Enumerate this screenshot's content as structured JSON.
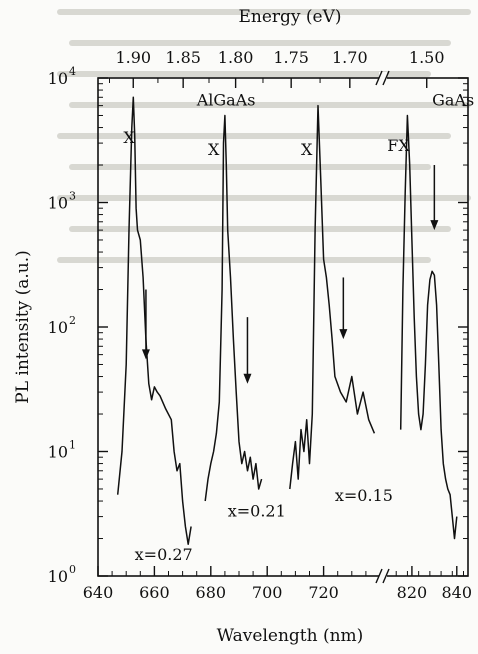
{
  "chart_data": {
    "type": "line",
    "xlabel": "Wavelength (nm)",
    "ylabel": "PL intensity (a.u.)",
    "x2label": "Energy (eV)",
    "ylog": true,
    "ylim": [
      1,
      10000
    ],
    "y_ticks": [
      {
        "value": 1,
        "base": "10",
        "exp": "0"
      },
      {
        "value": 10,
        "base": "10",
        "exp": "1"
      },
      {
        "value": 100,
        "base": "10",
        "exp": "2"
      },
      {
        "value": 1000,
        "base": "10",
        "exp": "3"
      },
      {
        "value": 10000,
        "base": "10",
        "exp": "4"
      }
    ],
    "x_segments": [
      {
        "range": [
          640,
          740
        ],
        "ticks": [
          640,
          660,
          680,
          700,
          720
        ],
        "tick_labels": [
          "640",
          "660",
          "680",
          "700",
          "720"
        ]
      },
      {
        "range": [
          808,
          845
        ],
        "ticks": [
          820,
          840
        ],
        "tick_labels": [
          "820",
          "840"
        ]
      }
    ],
    "energy_ticks": [
      {
        "label": "1.90",
        "wavelength": 652.5
      },
      {
        "label": "1.85",
        "wavelength": 670.2
      },
      {
        "label": "1.80",
        "wavelength": 688.8
      },
      {
        "label": "1.75",
        "wavelength": 708.5
      },
      {
        "label": "1.70",
        "wavelength": 729.3
      },
      {
        "label": "1.50",
        "wavelength": 826.6
      }
    ],
    "series": [
      {
        "x": [
          647,
          648.5,
          650,
          651,
          652,
          652.5,
          653,
          653.5,
          654,
          655,
          656,
          657,
          658,
          659,
          660,
          661,
          662,
          664,
          666,
          667,
          668,
          669,
          670,
          671,
          672,
          673
        ],
        "y": [
          4.5,
          10,
          50,
          600,
          4000,
          7000,
          3500,
          900,
          600,
          500,
          250,
          80,
          35,
          26,
          33,
          30,
          28,
          22,
          18,
          10,
          7,
          8,
          4,
          2.5,
          1.8,
          2.5
        ]
      },
      {
        "x": [
          678,
          679,
          680,
          681,
          682,
          683,
          684,
          684.5,
          685,
          685.5,
          686,
          687,
          688,
          689,
          690,
          691,
          692,
          693,
          694,
          695,
          696,
          697,
          698
        ],
        "y": [
          4,
          6,
          8,
          10,
          14,
          25,
          200,
          3000,
          5000,
          2000,
          600,
          250,
          80,
          30,
          12,
          8,
          10,
          7,
          9,
          6,
          8,
          5,
          6
        ]
      },
      {
        "x": [
          708,
          709,
          710,
          711,
          712,
          713,
          714,
          715,
          716,
          717,
          718,
          719,
          720,
          721,
          722,
          723,
          724,
          726,
          728,
          730,
          732,
          734,
          736,
          738
        ],
        "y": [
          5,
          8,
          12,
          6,
          15,
          10,
          18,
          8,
          20,
          600,
          6000,
          1500,
          350,
          250,
          150,
          80,
          40,
          30,
          25,
          40,
          20,
          30,
          18,
          14
        ]
      },
      {
        "x": [
          815,
          816,
          817,
          818,
          819,
          820,
          821,
          822,
          823,
          824,
          825,
          826,
          827,
          828,
          829,
          830,
          831,
          832,
          833,
          834,
          835,
          836,
          837,
          838,
          839,
          840
        ],
        "y": [
          15,
          200,
          1200,
          5000,
          2000,
          500,
          120,
          40,
          20,
          15,
          20,
          50,
          150,
          240,
          280,
          260,
          150,
          50,
          15,
          8,
          6,
          5,
          4.5,
          3,
          2,
          3
        ]
      }
    ],
    "arrows": [
      {
        "x": 657,
        "y_from": 200,
        "y_to": 55
      },
      {
        "x": 693,
        "y_from": 120,
        "y_to": 35
      },
      {
        "x": 727,
        "y_from": 250,
        "y_to": 80
      },
      {
        "x": 830,
        "y_from": 2000,
        "y_to": 600
      }
    ],
    "annotations": [
      {
        "text": "AlGaAs",
        "x": 675,
        "y": 6000
      },
      {
        "text": "GaAs",
        "x": 829,
        "y": 6000
      },
      {
        "text": "X",
        "x": 649,
        "y": 3000
      },
      {
        "text": "X",
        "x": 679,
        "y": 2400
      },
      {
        "text": "X",
        "x": 712,
        "y": 2400
      },
      {
        "text": "FX",
        "x": 809,
        "y": 2600
      },
      {
        "text": "x=0.27",
        "x": 653,
        "y": 1.35
      },
      {
        "text": "x=0.21",
        "x": 686,
        "y": 3
      },
      {
        "text": "x=0.15",
        "x": 724,
        "y": 4
      }
    ]
  }
}
